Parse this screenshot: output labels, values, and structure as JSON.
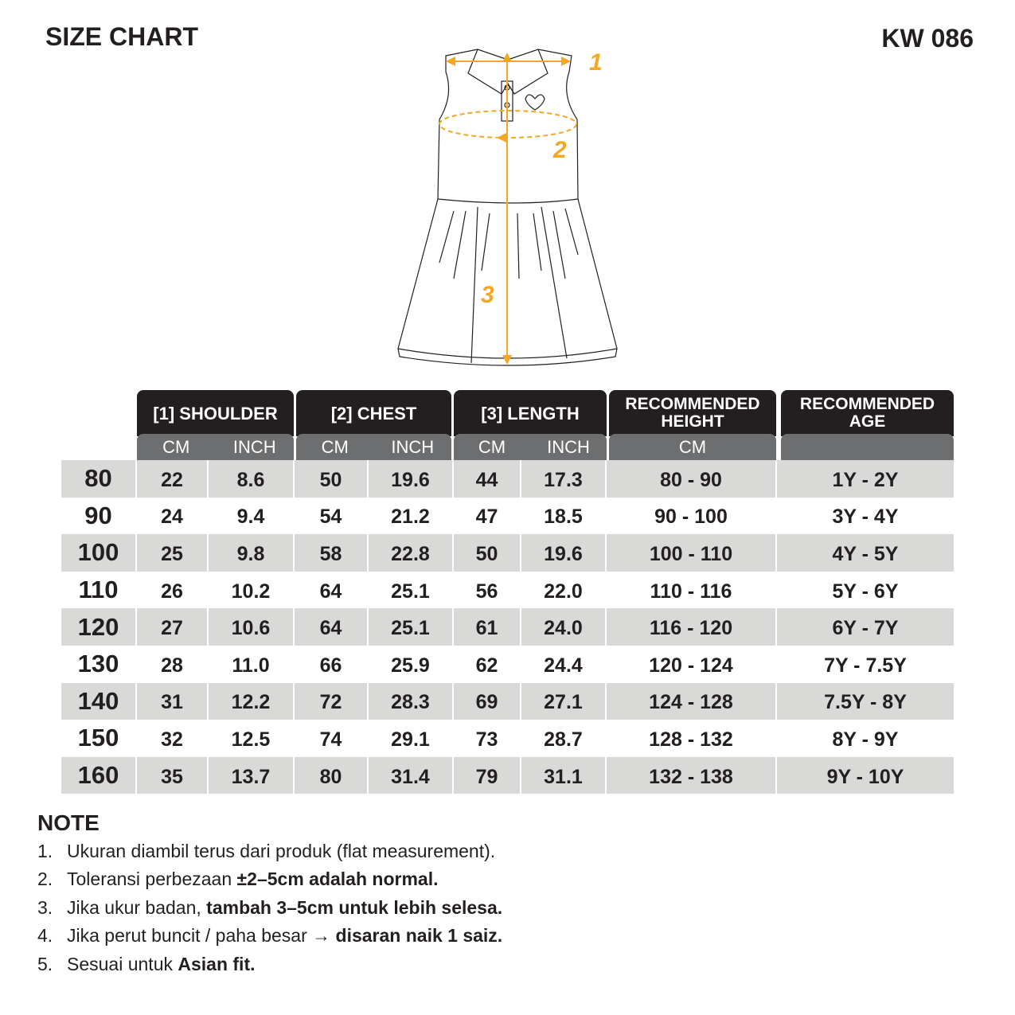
{
  "title": "SIZE CHART",
  "product_code": "KW 086",
  "diagram": {
    "markers": [
      "1",
      "2",
      "3"
    ],
    "accent": "#f5a623"
  },
  "table": {
    "headers": [
      "[1] SHOULDER",
      "[2] CHEST",
      "[3] LENGTH",
      "RECOMMENDED HEIGHT",
      "RECOMMENDED AGE"
    ],
    "subheaders": [
      "CM",
      "INCH",
      "CM",
      "INCH",
      "CM",
      "INCH",
      "CM",
      ""
    ],
    "rows": [
      {
        "size": "80",
        "cells": [
          "22",
          "8.6",
          "50",
          "19.6",
          "44",
          "17.3",
          "80 - 90",
          "1Y - 2Y"
        ]
      },
      {
        "size": "90",
        "cells": [
          "24",
          "9.4",
          "54",
          "21.2",
          "47",
          "18.5",
          "90 - 100",
          "3Y - 4Y"
        ]
      },
      {
        "size": "100",
        "cells": [
          "25",
          "9.8",
          "58",
          "22.8",
          "50",
          "19.6",
          "100 - 110",
          "4Y - 5Y"
        ]
      },
      {
        "size": "110",
        "cells": [
          "26",
          "10.2",
          "64",
          "25.1",
          "56",
          "22.0",
          "110 - 116",
          "5Y - 6Y"
        ]
      },
      {
        "size": "120",
        "cells": [
          "27",
          "10.6",
          "64",
          "25.1",
          "61",
          "24.0",
          "116 - 120",
          "6Y - 7Y"
        ]
      },
      {
        "size": "130",
        "cells": [
          "28",
          "11.0",
          "66",
          "25.9",
          "62",
          "24.4",
          "120 - 124",
          "7Y - 7.5Y"
        ]
      },
      {
        "size": "140",
        "cells": [
          "31",
          "12.2",
          "72",
          "28.3",
          "69",
          "27.1",
          "124 - 128",
          "7.5Y - 8Y"
        ]
      },
      {
        "size": "150",
        "cells": [
          "32",
          "12.5",
          "74",
          "29.1",
          "73",
          "28.7",
          "128 - 132",
          "8Y - 9Y"
        ]
      },
      {
        "size": "160",
        "cells": [
          "35",
          "13.7",
          "80",
          "31.4",
          "79",
          "31.1",
          "132 - 138",
          "9Y - 10Y"
        ]
      }
    ]
  },
  "note": {
    "heading": "NOTE",
    "items": [
      {
        "num": "1.",
        "text": "Ukuran diambil terus dari produk (flat measurement).",
        "bold": ""
      },
      {
        "num": "2.",
        "text": "Toleransi perbezaan ",
        "bold": "±2–5cm adalah normal."
      },
      {
        "num": "3.",
        "text": "Jika ukur badan, ",
        "bold": "tambah 3–5cm untuk lebih selesa."
      },
      {
        "num": "4.",
        "text": "Jika perut buncit / paha besar → ",
        "bold": "disaran naik 1 saiz."
      },
      {
        "num": "5.",
        "text": "Sesuai untuk ",
        "bold": "Asian fit."
      }
    ]
  }
}
